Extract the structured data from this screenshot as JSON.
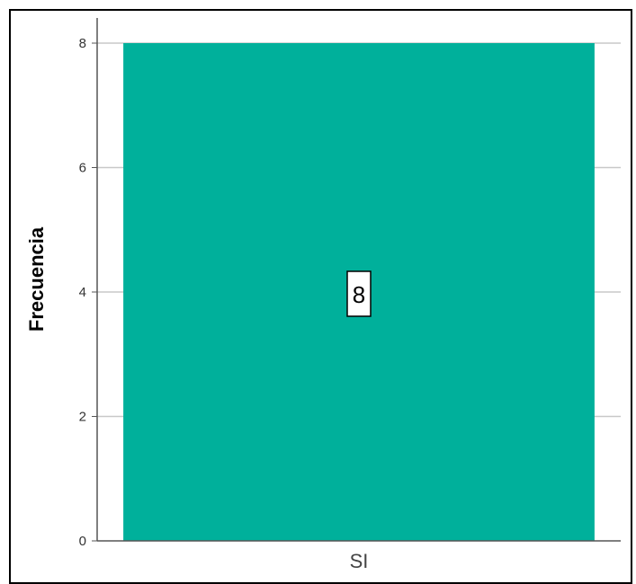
{
  "chart_data": {
    "type": "bar",
    "title": "",
    "xlabel": "",
    "ylabel": "Frecuencia",
    "categories": [
      "SI"
    ],
    "values": [
      8
    ],
    "ylim": [
      0,
      8
    ],
    "yticks": [
      0,
      2,
      4,
      6,
      8
    ],
    "data_labels": [
      "8"
    ],
    "grid": true,
    "bar_color": "#00b09b"
  }
}
